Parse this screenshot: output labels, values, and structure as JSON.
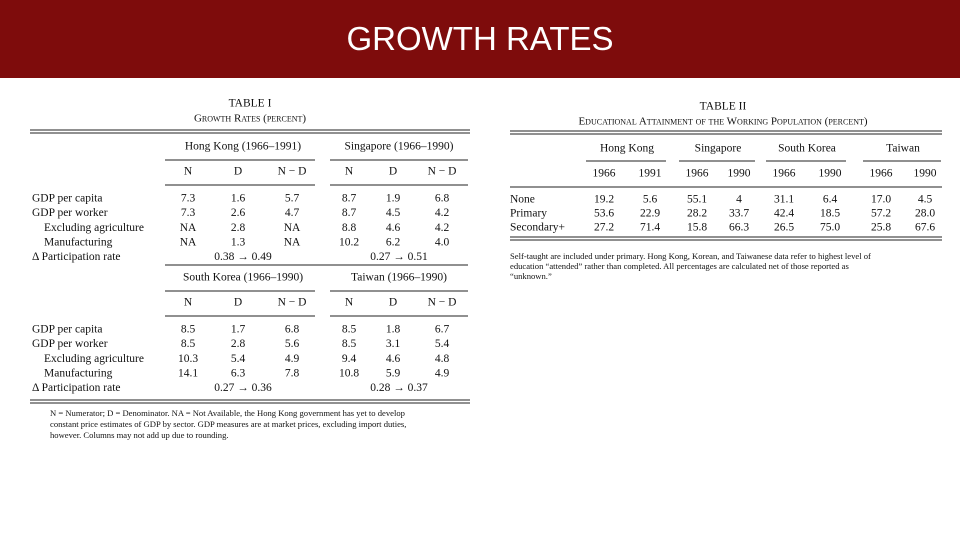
{
  "header": {
    "title": "GROWTH RATES"
  },
  "table_1": {
    "title": "TABLE I",
    "subtitle": "Growth Rates (percent)",
    "panels": [
      {
        "groups": [
          "Hong Kong (1966–1991)",
          "Singapore (1966–1990)"
        ],
        "columns": [
          "N",
          "D",
          "N − D",
          "N",
          "D",
          "N − D"
        ],
        "rows": [
          {
            "label": "GDP per capita",
            "cells": [
              "7.3",
              "1.6",
              "5.7",
              "8.7",
              "1.9",
              "6.8"
            ]
          },
          {
            "label": "GDP per worker",
            "cells": [
              "7.3",
              "2.6",
              "4.7",
              "8.7",
              "4.5",
              "4.2"
            ]
          },
          {
            "label": "Excluding agriculture",
            "cells": [
              "NA",
              "2.8",
              "NA",
              "8.8",
              "4.6",
              "4.2"
            ]
          },
          {
            "label": "Manufacturing",
            "cells": [
              "NA",
              "1.3",
              "NA",
              "10.2",
              "6.2",
              "4.0"
            ]
          },
          {
            "label": "Δ Participation rate",
            "cells": [
              "0.38 → 0.49",
              "0.27 → 0.51"
            ]
          }
        ]
      },
      {
        "groups": [
          "South Korea (1966–1990)",
          "Taiwan (1966–1990)"
        ],
        "columns": [
          "N",
          "D",
          "N − D",
          "N",
          "D",
          "N − D"
        ],
        "rows": [
          {
            "label": "GDP per capita",
            "cells": [
              "8.5",
              "1.7",
              "6.8",
              "8.5",
              "1.8",
              "6.7"
            ]
          },
          {
            "label": "GDP per worker",
            "cells": [
              "8.5",
              "2.8",
              "5.6",
              "8.5",
              "3.1",
              "5.4"
            ]
          },
          {
            "label": "Excluding agriculture",
            "cells": [
              "10.3",
              "5.4",
              "4.9",
              "9.4",
              "4.6",
              "4.8"
            ]
          },
          {
            "label": "Manufacturing",
            "cells": [
              "14.1",
              "6.3",
              "7.8",
              "10.8",
              "5.9",
              "4.9"
            ]
          },
          {
            "label": "Δ Participation rate",
            "cells": [
              "0.27 → 0.36",
              "0.28 → 0.37"
            ]
          }
        ]
      }
    ],
    "note": [
      "N = Numerator; D = Denominator. NA = Not Available, the Hong Kong government has yet to develop",
      "constant price estimates of GDP by sector. GDP measures are at market prices, excluding import duties,",
      "however. Columns may not add up due to rounding."
    ]
  },
  "table_2": {
    "title": "TABLE II",
    "subtitle": "Educational Attainment of the Working Population (percent)",
    "groups": [
      "Hong Kong",
      "Singapore",
      "South Korea",
      "Taiwan"
    ],
    "columns": [
      "1966",
      "1991",
      "1966",
      "1990",
      "1966",
      "1990",
      "1966",
      "1990"
    ],
    "rows": [
      {
        "label": "None",
        "cells": [
          "19.2",
          "5.6",
          "55.1",
          "4",
          "31.1",
          "6.4",
          "17.0",
          "4.5"
        ]
      },
      {
        "label": "Primary",
        "cells": [
          "53.6",
          "22.9",
          "28.2",
          "33.7",
          "42.4",
          "18.5",
          "57.2",
          "28.0"
        ]
      },
      {
        "label": "Secondary+",
        "cells": [
          "27.2",
          "71.4",
          "15.8",
          "66.3",
          "26.5",
          "75.0",
          "25.8",
          "67.6"
        ]
      }
    ],
    "note": [
      "Self-taught are included under primary. Hong Kong, Korean, and Taiwanese data refer to highest level of",
      "education “attended” rather than completed. All percentages are calculated net of those reported as",
      "“unknown.”"
    ]
  }
}
